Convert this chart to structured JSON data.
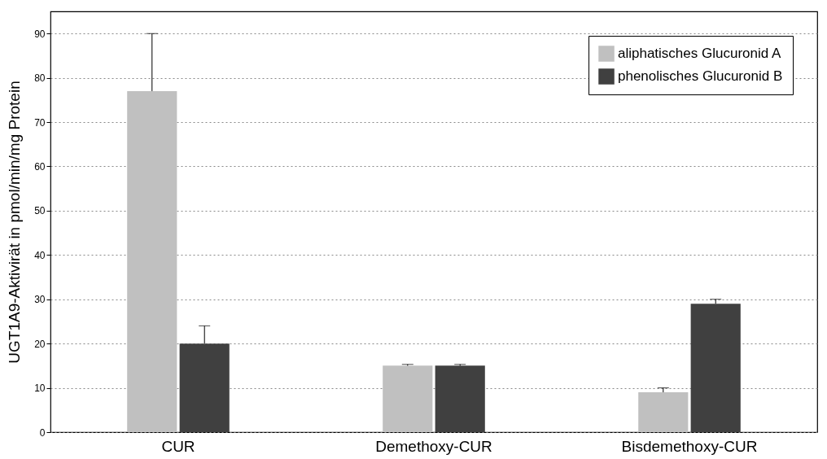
{
  "chart_data": {
    "type": "bar",
    "ylabel": "UGT1A9-Aktivirät in pmol/min/mg Protein",
    "categories": [
      "CUR",
      "Demethoxy-CUR",
      "Bisdemethoxy-CUR"
    ],
    "series": [
      {
        "name": "aliphatisches Glucuronid A",
        "color": "#c0c0c0",
        "values": [
          77,
          15,
          9
        ],
        "errors": [
          [
            77,
            90
          ],
          [
            15,
            15.3
          ],
          [
            9,
            10
          ]
        ]
      },
      {
        "name": "phenolisches Glucuronid B",
        "color": "#404040",
        "values": [
          20,
          15,
          29
        ],
        "errors": [
          [
            20,
            24
          ],
          [
            15,
            15.3
          ],
          [
            29,
            30
          ]
        ]
      }
    ],
    "ylim": [
      0,
      95
    ],
    "yticks": [
      0,
      10,
      20,
      30,
      40,
      50,
      60,
      70,
      80,
      90
    ],
    "grid": "y",
    "legend": "top right"
  }
}
